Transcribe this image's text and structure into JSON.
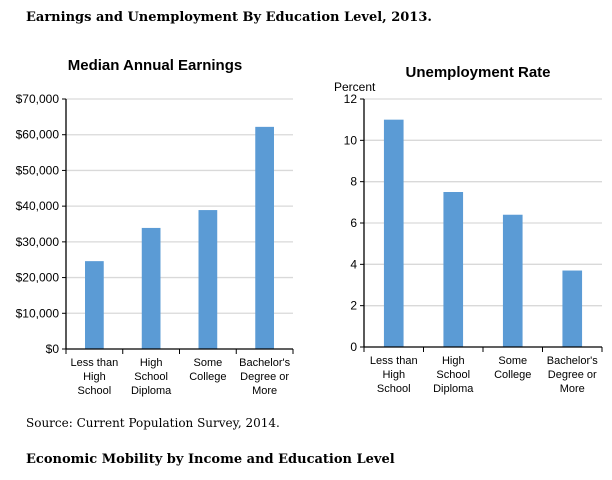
{
  "header": {
    "title": "Earnings and Unemployment By Education Level, 2013."
  },
  "footer": {
    "source": "Source: Current Population Survey, 2014.",
    "next_heading": "Economic Mobility by Income and Education Level"
  },
  "colors": {
    "bar": "#5b9bd5",
    "grid": "#d9d9d9"
  },
  "chart_data": [
    {
      "type": "bar",
      "title": "Median Annual Earnings",
      "ylabel": "",
      "xlabel": "",
      "categories": [
        [
          "Less than",
          "High",
          "School"
        ],
        [
          "High",
          "School",
          "Diploma"
        ],
        [
          "Some",
          "College"
        ],
        [
          "Bachelor's",
          "Degree or",
          "More"
        ]
      ],
      "values": [
        24600,
        33900,
        38900,
        62200
      ],
      "ylim": [
        0,
        70000
      ],
      "yticks": [
        "$0",
        "$10,000",
        "$20,000",
        "$30,000",
        "$40,000",
        "$50,000",
        "$60,000",
        "$70,000"
      ],
      "grid": true
    },
    {
      "type": "bar",
      "title": "Unemployment Rate",
      "ylabel": "Percent",
      "xlabel": "",
      "categories": [
        [
          "Less than",
          "High",
          "School"
        ],
        [
          "High",
          "School",
          "Diploma"
        ],
        [
          "Some",
          "College"
        ],
        [
          "Bachelor's",
          "Degree or",
          "More"
        ]
      ],
      "values": [
        11.0,
        7.5,
        6.4,
        3.7
      ],
      "ylim": [
        0,
        12
      ],
      "yticks": [
        "0",
        "2",
        "4",
        "6",
        "8",
        "10",
        "12"
      ],
      "grid": true
    }
  ]
}
